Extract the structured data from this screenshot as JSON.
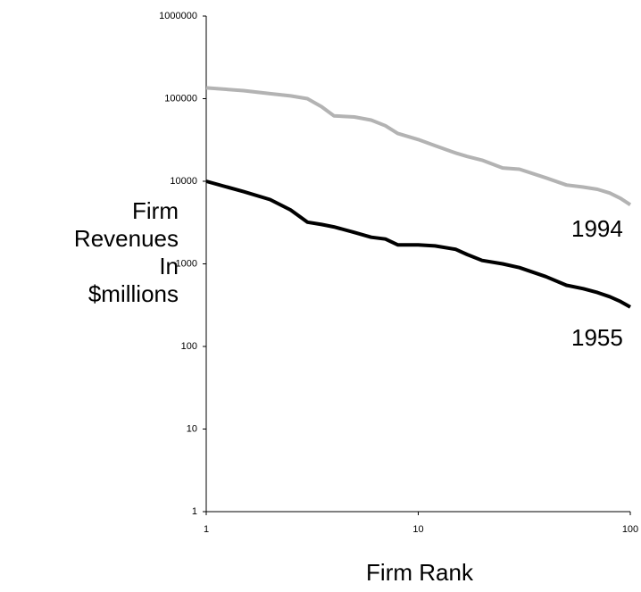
{
  "chart_data": {
    "type": "line",
    "ylabel": [
      "Firm",
      "Revenues",
      "In",
      "$millions"
    ],
    "xlabel": "Firm Rank",
    "x": [
      1,
      1.5,
      2,
      2.5,
      3,
      3.5,
      4,
      5,
      6,
      7,
      8,
      10,
      12,
      15,
      17,
      20,
      25,
      30,
      40,
      50,
      60,
      70,
      80,
      90,
      100
    ],
    "series": [
      {
        "name": "1994",
        "color": "#b3b3b3",
        "values": [
          135000,
          125000,
          115000,
          108000,
          100000,
          80000,
          62000,
          60000,
          55000,
          47000,
          38000,
          32000,
          27000,
          22000,
          20000,
          18000,
          14500,
          14000,
          11000,
          9000,
          8500,
          8000,
          7200,
          6200,
          5200
        ]
      },
      {
        "name": "1955",
        "color": "#000000",
        "values": [
          10000,
          7500,
          6000,
          4500,
          3200,
          3000,
          2800,
          2400,
          2100,
          2000,
          1700,
          1700,
          1650,
          1500,
          1300,
          1100,
          1000,
          900,
          700,
          550,
          500,
          450,
          400,
          350,
          300
        ]
      }
    ],
    "xlim": [
      1,
      100
    ],
    "xticks": [
      1,
      10,
      100
    ],
    "ylim": [
      1,
      1000000
    ],
    "yticks": [
      1,
      10,
      100,
      1000,
      10000,
      100000,
      1000000
    ],
    "xlog": true,
    "ylog": true,
    "grid": false
  }
}
